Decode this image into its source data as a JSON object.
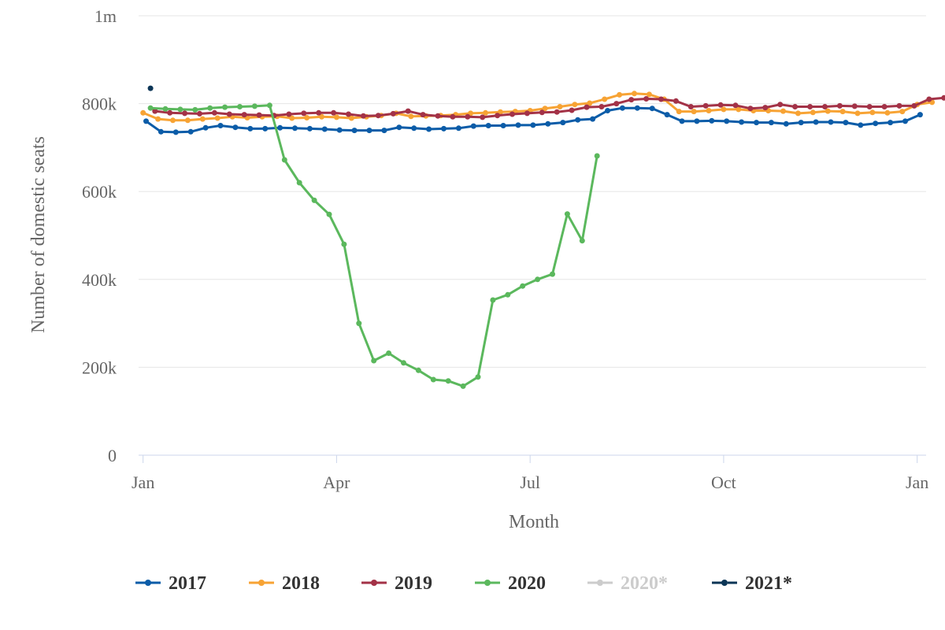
{
  "chart_data": {
    "type": "line",
    "title": "",
    "xlabel": "Month",
    "ylabel": "Number of domestic seats",
    "x_axis": {
      "type": "week",
      "ticks": [
        {
          "label": "Jan",
          "week": 0
        },
        {
          "label": "Apr",
          "week": 13
        },
        {
          "label": "Jul",
          "week": 26
        },
        {
          "label": "Oct",
          "week": 39
        },
        {
          "label": "Jan",
          "week": 52
        }
      ],
      "range": [
        -0.3,
        52.6
      ]
    },
    "y_axis": {
      "range": [
        0,
        1000000
      ],
      "ticks": [
        {
          "label": "0",
          "value": 0
        },
        {
          "label": "200k",
          "value": 200000
        },
        {
          "label": "400k",
          "value": 400000
        },
        {
          "label": "600k",
          "value": 600000
        },
        {
          "label": "800k",
          "value": 800000
        },
        {
          "label": "1m",
          "value": 1000000
        }
      ]
    },
    "grid": true,
    "legend_position": "bottom",
    "series": [
      {
        "name": "2017",
        "color": "#0b5ca8",
        "x_start": 0.2,
        "values": [
          760000,
          736000,
          735000,
          736000,
          745000,
          750000,
          746000,
          743000,
          743000,
          745000,
          744000,
          743000,
          742000,
          740000,
          739000,
          739000,
          739000,
          746000,
          744000,
          742000,
          743000,
          744000,
          749000,
          750000,
          750000,
          751000,
          751000,
          754000,
          757000,
          763000,
          765000,
          784000,
          790000,
          790000,
          789000,
          775000,
          760000,
          760000,
          761000,
          760000,
          758000,
          757000,
          757000,
          754000,
          757000,
          758000,
          758000,
          757000,
          751000,
          755000,
          757000,
          760000,
          775000
        ]
      },
      {
        "name": "2018",
        "color": "#f7a334",
        "x_start": 0,
        "values": [
          779000,
          765000,
          762000,
          762000,
          765000,
          767000,
          770000,
          768000,
          770000,
          771000,
          767000,
          768000,
          770000,
          769000,
          767000,
          770000,
          773000,
          778000,
          771000,
          772000,
          773000,
          775000,
          778000,
          779000,
          781000,
          782000,
          784000,
          789000,
          793000,
          798000,
          801000,
          810000,
          820000,
          823000,
          821000,
          810000,
          782000,
          782000,
          784000,
          787000,
          787000,
          784000,
          784000,
          783000,
          778000,
          780000,
          783000,
          782000,
          778000,
          780000,
          779000,
          782000,
          798000,
          803000
        ]
      },
      {
        "name": "2019",
        "color": "#a33247",
        "x_start": 0.8,
        "values": [
          783000,
          779000,
          778000,
          777000,
          779000,
          776000,
          775000,
          774000,
          773000,
          776000,
          778000,
          779000,
          779000,
          776000,
          772000,
          773000,
          777000,
          783000,
          775000,
          772000,
          770000,
          770000,
          769000,
          773000,
          776000,
          778000,
          780000,
          781000,
          785000,
          792000,
          793000,
          800000,
          809000,
          811000,
          810000,
          806000,
          793000,
          795000,
          797000,
          796000,
          789000,
          791000,
          798000,
          793000,
          793000,
          793000,
          795000,
          794000,
          793000,
          793000,
          795000,
          795000,
          810000,
          813000
        ]
      },
      {
        "name": "2020",
        "color": "#5bb85d",
        "x_start": 0.5,
        "values": [
          790000,
          788000,
          787000,
          786000,
          790000,
          792000,
          793000,
          794000,
          796000,
          672000,
          620000,
          580000,
          548000,
          480000,
          300000,
          215000,
          232000,
          210000,
          193000,
          172000,
          169000,
          157000,
          178000,
          353000,
          365000,
          385000,
          400000,
          412000,
          549000,
          488000,
          681000
        ]
      },
      {
        "name": "2020*",
        "color": "#cccccc",
        "values": []
      },
      {
        "name": "2021*",
        "color": "#0b3556",
        "points": [
          {
            "week": 0.5,
            "value": 835000
          }
        ]
      }
    ]
  }
}
